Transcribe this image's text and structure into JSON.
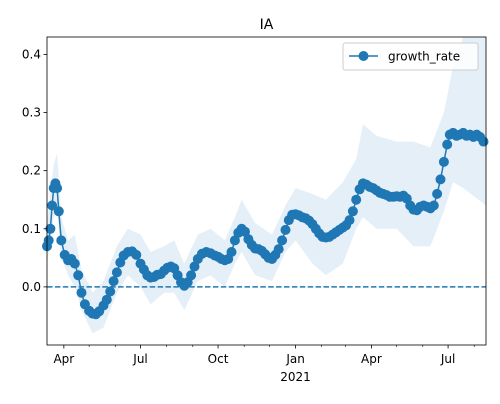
{
  "chart_data": {
    "type": "line",
    "title": "IA",
    "xlabel": "",
    "ylabel": "",
    "legend": {
      "placement": "top-right",
      "entries": [
        "growth_rate"
      ]
    },
    "grid": false,
    "x_range": [
      "2020-03-12",
      "2021-08-15"
    ],
    "ylim": [
      -0.1,
      0.43
    ],
    "x_ticks": [
      {
        "date": "2020-04-01",
        "label": "Apr"
      },
      {
        "date": "2020-07-01",
        "label": "Jul"
      },
      {
        "date": "2020-10-01",
        "label": "Oct"
      },
      {
        "date": "2021-01-01",
        "label": "Jan"
      },
      {
        "date": "2021-04-01",
        "label": "Apr"
      },
      {
        "date": "2021-07-01",
        "label": "Jul"
      }
    ],
    "x_minor_ticks": [
      "2020-05-01",
      "2020-06-01",
      "2020-08-01",
      "2020-09-01",
      "2020-11-01",
      "2020-12-01",
      "2021-02-01",
      "2021-03-01",
      "2021-05-01",
      "2021-06-01",
      "2021-08-01"
    ],
    "x_secondary_label": {
      "date": "2021-01-01",
      "text": "2021"
    },
    "y_ticks": [
      0.0,
      0.1,
      0.2,
      0.3,
      0.4
    ],
    "y_tick_labels": [
      "0.0",
      "0.1",
      "0.2",
      "0.3",
      "0.4"
    ],
    "reference_line": {
      "y": 0.0,
      "style": "dashed"
    },
    "colors": {
      "series": "#1f77b4",
      "band": "#c6dbef"
    },
    "series": [
      {
        "name": "growth_rate",
        "marker": "circle",
        "points": [
          [
            "2020-03-12",
            0.07
          ],
          [
            "2020-03-14",
            0.08
          ],
          [
            "2020-03-16",
            0.1
          ],
          [
            "2020-03-18",
            0.14
          ],
          [
            "2020-03-20",
            0.17
          ],
          [
            "2020-03-22",
            0.178
          ],
          [
            "2020-03-24",
            0.17
          ],
          [
            "2020-03-26",
            0.13
          ],
          [
            "2020-03-29",
            0.08
          ],
          [
            "2020-04-02",
            0.055
          ],
          [
            "2020-04-06",
            0.046
          ],
          [
            "2020-04-10",
            0.048
          ],
          [
            "2020-04-14",
            0.04
          ],
          [
            "2020-04-18",
            0.02
          ],
          [
            "2020-04-22",
            -0.01
          ],
          [
            "2020-04-26",
            -0.03
          ],
          [
            "2020-05-01",
            -0.041
          ],
          [
            "2020-05-05",
            -0.046
          ],
          [
            "2020-05-09",
            -0.047
          ],
          [
            "2020-05-13",
            -0.042
          ],
          [
            "2020-05-18",
            -0.032
          ],
          [
            "2020-05-22",
            -0.022
          ],
          [
            "2020-05-26",
            -0.008
          ],
          [
            "2020-05-30",
            0.01
          ],
          [
            "2020-06-03",
            0.025
          ],
          [
            "2020-06-07",
            0.042
          ],
          [
            "2020-06-11",
            0.054
          ],
          [
            "2020-06-16",
            0.06
          ],
          [
            "2020-06-21",
            0.061
          ],
          [
            "2020-06-26",
            0.055
          ],
          [
            "2020-07-01",
            0.04
          ],
          [
            "2020-07-05",
            0.03
          ],
          [
            "2020-07-09",
            0.02
          ],
          [
            "2020-07-13",
            0.016
          ],
          [
            "2020-07-17",
            0.017
          ],
          [
            "2020-07-21",
            0.021
          ],
          [
            "2020-07-25",
            0.022
          ],
          [
            "2020-07-29",
            0.028
          ],
          [
            "2020-08-02",
            0.033
          ],
          [
            "2020-08-06",
            0.035
          ],
          [
            "2020-08-10",
            0.032
          ],
          [
            "2020-08-14",
            0.02
          ],
          [
            "2020-08-18",
            0.008
          ],
          [
            "2020-08-22",
            0.002
          ],
          [
            "2020-08-26",
            0.008
          ],
          [
            "2020-08-30",
            0.02
          ],
          [
            "2020-09-03",
            0.035
          ],
          [
            "2020-09-07",
            0.048
          ],
          [
            "2020-09-12",
            0.057
          ],
          [
            "2020-09-17",
            0.06
          ],
          [
            "2020-09-22",
            0.058
          ],
          [
            "2020-09-27",
            0.054
          ],
          [
            "2020-10-01",
            0.052
          ],
          [
            "2020-10-05",
            0.048
          ],
          [
            "2020-10-09",
            0.046
          ],
          [
            "2020-10-13",
            0.048
          ],
          [
            "2020-10-17",
            0.06
          ],
          [
            "2020-10-21",
            0.08
          ],
          [
            "2020-10-25",
            0.093
          ],
          [
            "2020-10-29",
            0.1
          ],
          [
            "2020-11-02",
            0.095
          ],
          [
            "2020-11-06",
            0.082
          ],
          [
            "2020-11-10",
            0.072
          ],
          [
            "2020-11-14",
            0.066
          ],
          [
            "2020-11-18",
            0.065
          ],
          [
            "2020-11-22",
            0.062
          ],
          [
            "2020-11-26",
            0.056
          ],
          [
            "2020-11-30",
            0.05
          ],
          [
            "2020-12-04",
            0.048
          ],
          [
            "2020-12-08",
            0.055
          ],
          [
            "2020-12-12",
            0.065
          ],
          [
            "2020-12-16",
            0.08
          ],
          [
            "2020-12-20",
            0.098
          ],
          [
            "2020-12-24",
            0.115
          ],
          [
            "2020-12-28",
            0.124
          ],
          [
            "2021-01-01",
            0.125
          ],
          [
            "2021-01-05",
            0.123
          ],
          [
            "2021-01-09",
            0.12
          ],
          [
            "2021-01-13",
            0.118
          ],
          [
            "2021-01-17",
            0.114
          ],
          [
            "2021-01-21",
            0.108
          ],
          [
            "2021-01-25",
            0.1
          ],
          [
            "2021-01-29",
            0.092
          ],
          [
            "2021-02-02",
            0.086
          ],
          [
            "2021-02-06",
            0.085
          ],
          [
            "2021-02-10",
            0.086
          ],
          [
            "2021-02-14",
            0.09
          ],
          [
            "2021-02-18",
            0.094
          ],
          [
            "2021-02-22",
            0.098
          ],
          [
            "2021-02-26",
            0.102
          ],
          [
            "2021-03-02",
            0.106
          ],
          [
            "2021-03-06",
            0.115
          ],
          [
            "2021-03-10",
            0.13
          ],
          [
            "2021-03-14",
            0.15
          ],
          [
            "2021-03-18",
            0.168
          ],
          [
            "2021-03-22",
            0.178
          ],
          [
            "2021-03-26",
            0.176
          ],
          [
            "2021-03-30",
            0.172
          ],
          [
            "2021-04-03",
            0.17
          ],
          [
            "2021-04-07",
            0.166
          ],
          [
            "2021-04-11",
            0.162
          ],
          [
            "2021-04-15",
            0.16
          ],
          [
            "2021-04-19",
            0.158
          ],
          [
            "2021-04-23",
            0.155
          ],
          [
            "2021-04-27",
            0.155
          ],
          [
            "2021-05-01",
            0.156
          ],
          [
            "2021-05-05",
            0.155
          ],
          [
            "2021-05-09",
            0.157
          ],
          [
            "2021-05-13",
            0.152
          ],
          [
            "2021-05-17",
            0.14
          ],
          [
            "2021-05-21",
            0.133
          ],
          [
            "2021-05-25",
            0.132
          ],
          [
            "2021-05-29",
            0.138
          ],
          [
            "2021-06-02",
            0.14
          ],
          [
            "2021-06-06",
            0.138
          ],
          [
            "2021-06-10",
            0.135
          ],
          [
            "2021-06-14",
            0.14
          ],
          [
            "2021-06-18",
            0.16
          ],
          [
            "2021-06-22",
            0.185
          ],
          [
            "2021-06-26",
            0.215
          ],
          [
            "2021-06-30",
            0.245
          ],
          [
            "2021-07-03",
            0.262
          ],
          [
            "2021-07-07",
            0.265
          ],
          [
            "2021-07-11",
            0.26
          ],
          [
            "2021-07-15",
            0.262
          ],
          [
            "2021-07-19",
            0.265
          ],
          [
            "2021-07-23",
            0.26
          ],
          [
            "2021-07-27",
            0.262
          ],
          [
            "2021-07-31",
            0.258
          ],
          [
            "2021-08-04",
            0.262
          ],
          [
            "2021-08-08",
            0.258
          ],
          [
            "2021-08-12",
            0.25
          ]
        ]
      }
    ],
    "confidence_band": [
      [
        "2020-03-12",
        0.04,
        0.11
      ],
      [
        "2020-03-20",
        0.12,
        0.21
      ],
      [
        "2020-03-24",
        0.13,
        0.23
      ],
      [
        "2020-03-29",
        0.05,
        0.12
      ],
      [
        "2020-04-06",
        0.02,
        0.08
      ],
      [
        "2020-04-14",
        0.0,
        0.09
      ],
      [
        "2020-04-22",
        -0.04,
        0.03
      ],
      [
        "2020-05-05",
        -0.08,
        -0.01
      ],
      [
        "2020-05-18",
        -0.07,
        0.01
      ],
      [
        "2020-06-03",
        -0.01,
        0.07
      ],
      [
        "2020-06-16",
        0.02,
        0.1
      ],
      [
        "2020-07-01",
        0.0,
        0.09
      ],
      [
        "2020-07-13",
        -0.03,
        0.06
      ],
      [
        "2020-07-29",
        -0.01,
        0.07
      ],
      [
        "2020-08-10",
        -0.01,
        0.08
      ],
      [
        "2020-08-22",
        -0.04,
        0.04
      ],
      [
        "2020-09-07",
        0.01,
        0.09
      ],
      [
        "2020-09-22",
        0.02,
        0.1
      ],
      [
        "2020-10-09",
        0.0,
        0.08
      ],
      [
        "2020-10-21",
        0.04,
        0.12
      ],
      [
        "2020-10-29",
        0.06,
        0.15
      ],
      [
        "2020-11-14",
        0.02,
        0.11
      ],
      [
        "2020-12-04",
        0.01,
        0.09
      ],
      [
        "2020-12-20",
        0.06,
        0.14
      ],
      [
        "2021-01-01",
        0.08,
        0.17
      ],
      [
        "2021-01-21",
        0.04,
        0.16
      ],
      [
        "2021-02-06",
        0.02,
        0.15
      ],
      [
        "2021-02-26",
        0.04,
        0.18
      ],
      [
        "2021-03-14",
        0.1,
        0.22
      ],
      [
        "2021-03-22",
        0.12,
        0.28
      ],
      [
        "2021-04-07",
        0.1,
        0.26
      ],
      [
        "2021-05-01",
        0.1,
        0.25
      ],
      [
        "2021-05-21",
        0.07,
        0.25
      ],
      [
        "2021-06-10",
        0.07,
        0.24
      ],
      [
        "2021-06-26",
        0.13,
        0.3
      ],
      [
        "2021-07-07",
        0.18,
        0.38
      ],
      [
        "2021-07-19",
        0.17,
        0.43
      ],
      [
        "2021-08-15",
        0.14,
        0.43
      ]
    ]
  }
}
